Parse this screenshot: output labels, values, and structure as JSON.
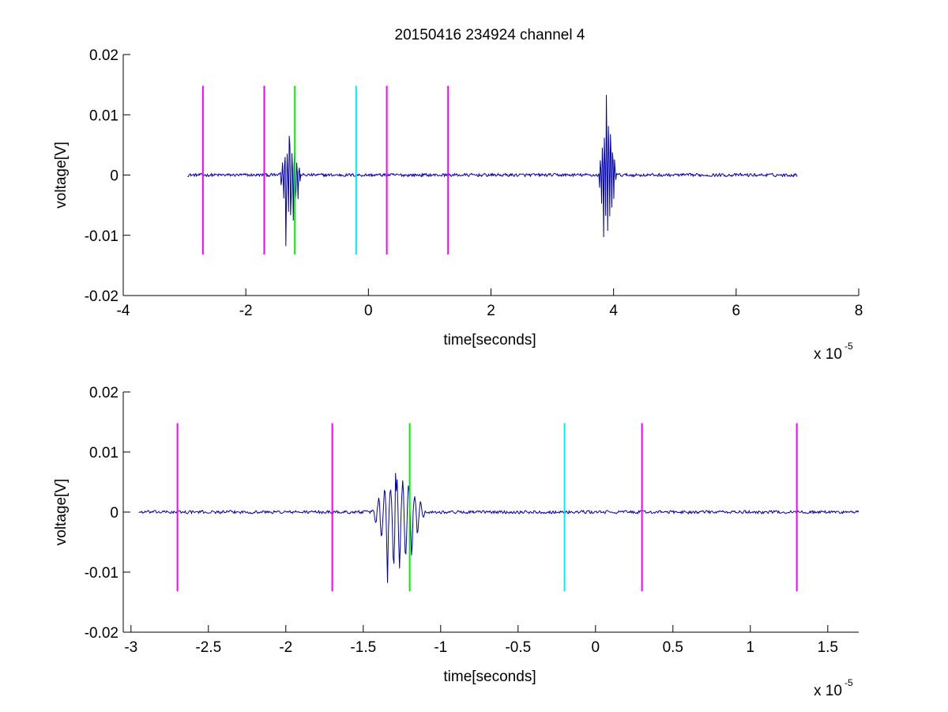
{
  "figure": {
    "title": "20150416 234924 channel 4",
    "colors": {
      "background": "#ffffff",
      "axes": "#000000",
      "signal": "#0000aa",
      "marker_magenta": "#ff00ff",
      "marker_green": "#00ee00",
      "marker_cyan": "#00eeee"
    }
  },
  "chart_data": [
    {
      "type": "line",
      "title": "20150416 234924 channel 4",
      "xlabel": "time[seconds]",
      "ylabel": "voltage[V]",
      "x_multiplier": "x 10",
      "x_exponent": "-5",
      "xlim": [
        -4,
        8
      ],
      "ylim": [
        -0.02,
        0.02
      ],
      "x_ticks": [
        -4,
        -2,
        0,
        2,
        4,
        6,
        8
      ],
      "x_tick_labels": [
        "-4",
        "-2",
        "0",
        "2",
        "4",
        "6",
        "8"
      ],
      "y_ticks": [
        -0.02,
        -0.01,
        0,
        0.01,
        0.02
      ],
      "y_tick_labels": [
        "-0.02",
        "-0.01",
        "0",
        "0.01",
        "0.02"
      ],
      "grid": false,
      "signal": {
        "x_range": [
          -2.95,
          7.0
        ],
        "baseline": 0,
        "noise_amplitude": 0.00035,
        "bursts": [
          {
            "x_range": [
              -1.45,
              -1.1
            ],
            "peak_positive": 0.0065,
            "peak_negative": -0.0118
          },
          {
            "x_range": [
              3.75,
              4.05
            ],
            "peak_positive": 0.0133,
            "peak_negative": -0.0103
          }
        ]
      },
      "markers": [
        {
          "x": -2.7,
          "color": "#ff00ff",
          "ymin": -0.0132,
          "ymax": 0.0148
        },
        {
          "x": -1.7,
          "color": "#ff00ff",
          "ymin": -0.0132,
          "ymax": 0.0148
        },
        {
          "x": -1.2,
          "color": "#00ee00",
          "ymin": -0.0132,
          "ymax": 0.0148
        },
        {
          "x": -0.2,
          "color": "#00eeee",
          "ymin": -0.0132,
          "ymax": 0.0148
        },
        {
          "x": 0.3,
          "color": "#ff00ff",
          "ymin": -0.0132,
          "ymax": 0.0148
        },
        {
          "x": 1.3,
          "color": "#ff00ff",
          "ymin": -0.0132,
          "ymax": 0.0148
        }
      ]
    },
    {
      "type": "line",
      "xlabel": "time[seconds]",
      "ylabel": "voltage[V]",
      "x_multiplier": "x 10",
      "x_exponent": "-5",
      "xlim": [
        -3.05,
        1.7
      ],
      "ylim": [
        -0.02,
        0.02
      ],
      "x_ticks": [
        -3,
        -2.5,
        -2,
        -1.5,
        -1,
        -0.5,
        0,
        0.5,
        1,
        1.5
      ],
      "x_tick_labels": [
        "-3",
        "-2.5",
        "-2",
        "-1.5",
        "-1",
        "-0.5",
        "0",
        "0.5",
        "1",
        "1.5"
      ],
      "y_ticks": [
        -0.02,
        -0.01,
        0,
        0.01,
        0.02
      ],
      "y_tick_labels": [
        "-0.02",
        "-0.01",
        "0",
        "0.01",
        "0.02"
      ],
      "grid": false,
      "signal": {
        "x_range": [
          -2.95,
          1.7
        ],
        "baseline": 0,
        "noise_amplitude": 0.00035,
        "bursts": [
          {
            "x_range": [
              -1.45,
              -1.1
            ],
            "peak_positive": 0.0065,
            "peak_negative": -0.0118
          }
        ]
      },
      "markers": [
        {
          "x": -2.7,
          "color": "#ff00ff",
          "ymin": -0.0132,
          "ymax": 0.0148
        },
        {
          "x": -1.7,
          "color": "#ff00ff",
          "ymin": -0.0132,
          "ymax": 0.0148
        },
        {
          "x": -1.2,
          "color": "#00ee00",
          "ymin": -0.0132,
          "ymax": 0.0148
        },
        {
          "x": -0.2,
          "color": "#00eeee",
          "ymin": -0.0132,
          "ymax": 0.0148
        },
        {
          "x": 0.3,
          "color": "#ff00ff",
          "ymin": -0.0132,
          "ymax": 0.0148
        },
        {
          "x": 1.3,
          "color": "#ff00ff",
          "ymin": -0.0132,
          "ymax": 0.0148
        }
      ]
    }
  ]
}
